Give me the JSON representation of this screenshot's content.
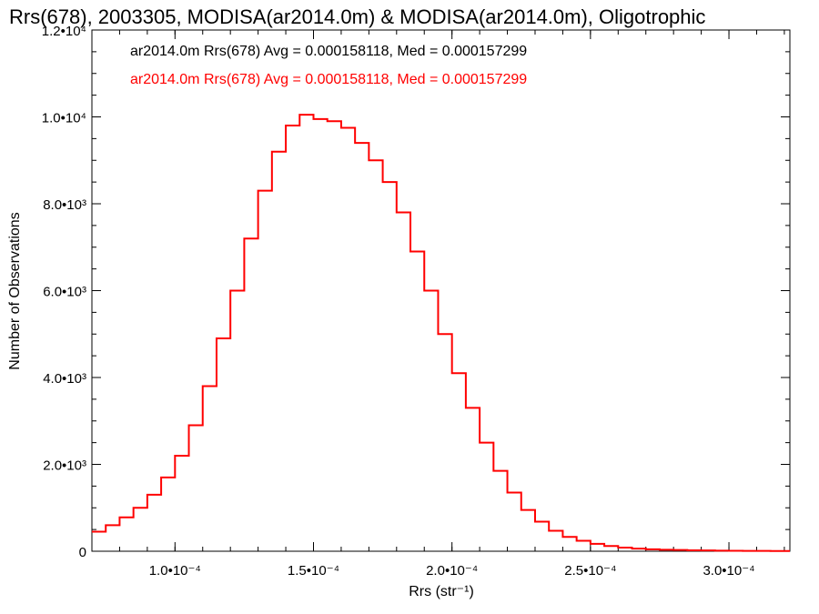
{
  "chart_data": {
    "type": "line",
    "title": "Rrs(678), 2003305, MODISA(ar2014.0m) & MODISA(ar2014.0m), Oligotrophic",
    "xlabel": "Rrs (str⁻¹)",
    "ylabel": "Number of Observations",
    "xlim": [
      7e-05,
      0.000322
    ],
    "ylim": [
      0,
      12000
    ],
    "grid": false,
    "x_ticks": [
      {
        "value": 0.0001,
        "label": "1.0•10⁻⁴"
      },
      {
        "value": 0.00015,
        "label": "1.5•10⁻⁴"
      },
      {
        "value": 0.0002,
        "label": "2.0•10⁻⁴"
      },
      {
        "value": 0.00025,
        "label": "2.5•10⁻⁴"
      },
      {
        "value": 0.0003,
        "label": "3.0•10⁻⁴"
      }
    ],
    "y_ticks": [
      {
        "value": 0,
        "label": "0"
      },
      {
        "value": 2000,
        "label": "2.0•10³"
      },
      {
        "value": 4000,
        "label": "4.0•10³"
      },
      {
        "value": 6000,
        "label": "6.0•10³"
      },
      {
        "value": 8000,
        "label": "8.0•10³"
      },
      {
        "value": 10000,
        "label": "1.0•10⁴"
      },
      {
        "value": 12000,
        "label": "1.2•10⁴"
      }
    ],
    "stats": [
      {
        "text": "ar2014.0m Rrs(678) Avg = 0.000158118, Med = 0.000157299",
        "color": "#000000"
      },
      {
        "text": "ar2014.0m Rrs(678) Avg = 0.000158118, Med = 0.000157299",
        "color": "#ff0000"
      }
    ],
    "series": [
      {
        "color": "#ff0000",
        "x": [
          7e-05,
          7.5e-05,
          8e-05,
          8.5e-05,
          9e-05,
          9.5e-05,
          0.0001,
          0.000105,
          0.00011,
          0.000115,
          0.00012,
          0.000125,
          0.00013,
          0.000135,
          0.00014,
          0.000145,
          0.00015,
          0.000155,
          0.00016,
          0.000165,
          0.00017,
          0.000175,
          0.00018,
          0.000185,
          0.00019,
          0.000195,
          0.0002,
          0.000205,
          0.00021,
          0.000215,
          0.00022,
          0.000225,
          0.00023,
          0.000235,
          0.00024,
          0.000245,
          0.00025,
          0.000255,
          0.00026,
          0.000265,
          0.00027,
          0.000275,
          0.00028,
          0.000285,
          0.00029,
          0.000295,
          0.0003,
          0.000305,
          0.00031,
          0.000315,
          0.00032
        ],
        "values": [
          450,
          600,
          780,
          1000,
          1300,
          1700,
          2200,
          2900,
          3800,
          4900,
          6000,
          7200,
          8300,
          9200,
          9800,
          10050,
          9950,
          9900,
          9750,
          9400,
          9000,
          8500,
          7800,
          6900,
          6000,
          5000,
          4100,
          3300,
          2500,
          1850,
          1350,
          950,
          680,
          470,
          330,
          240,
          170,
          120,
          85,
          60,
          45,
          35,
          28,
          22,
          18,
          14,
          11,
          9,
          7,
          5,
          4
        ]
      }
    ]
  }
}
